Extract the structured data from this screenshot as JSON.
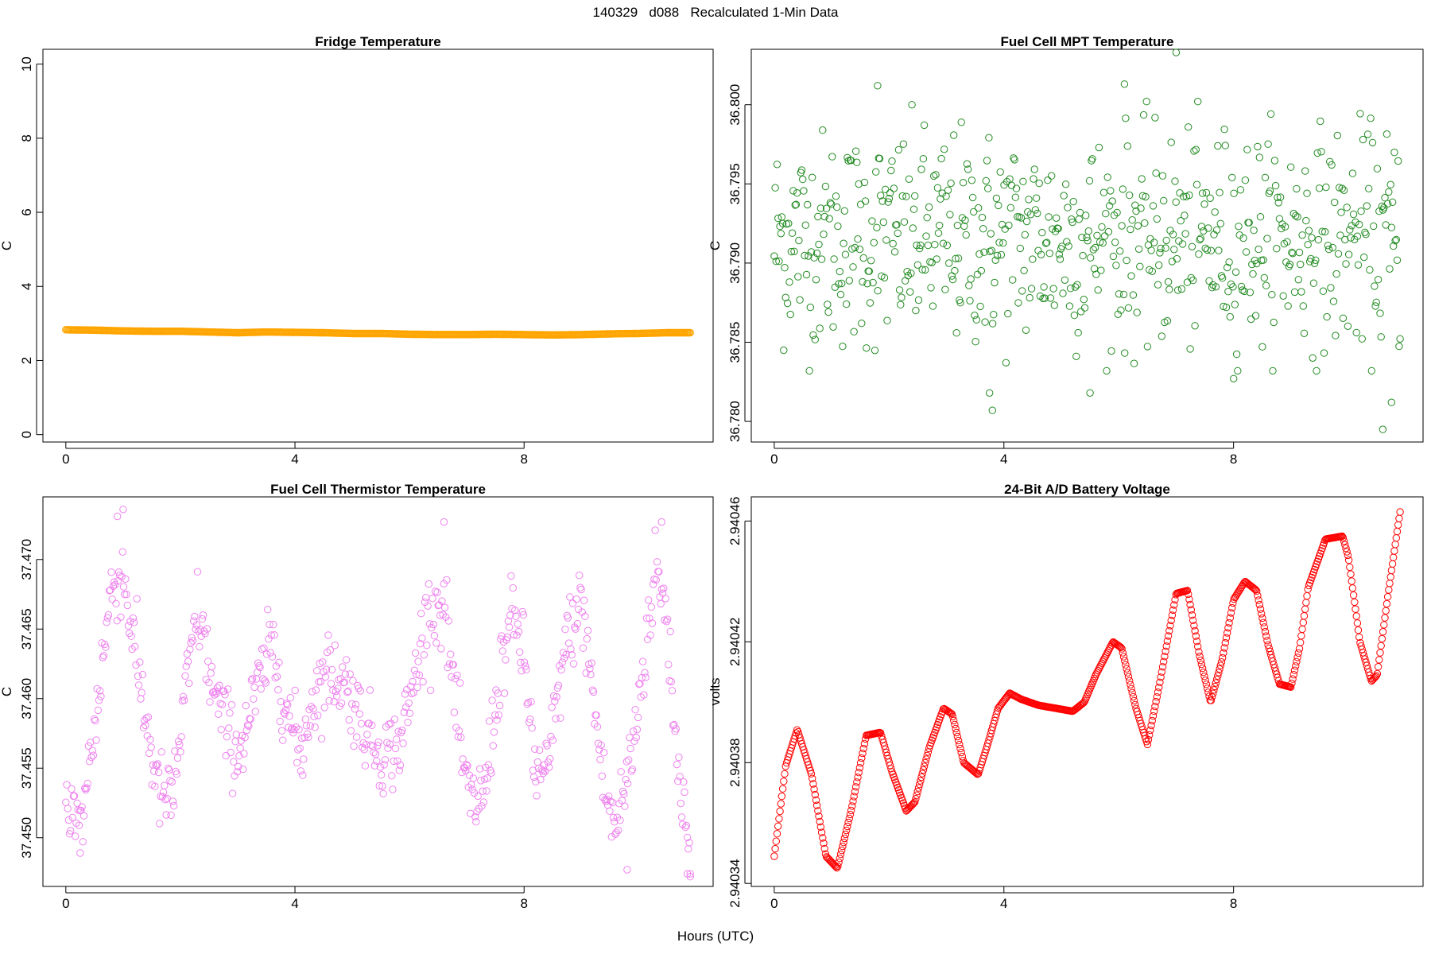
{
  "page": {
    "title": "140329   d088   Recalculated 1-Min Data",
    "xlabel": "Hours (UTC)"
  },
  "chart_data": [
    {
      "type": "scatter",
      "title": "Fridge Temperature",
      "ylabel": "C",
      "xlim": [
        -0.4,
        11.3
      ],
      "ylim": [
        -0.2,
        10.4
      ],
      "xticks": [
        0,
        4,
        8
      ],
      "yticks": [
        0,
        2,
        4,
        6,
        8,
        10
      ],
      "ytick_labels": [
        "0",
        "2",
        "4",
        "6",
        "8",
        "10"
      ],
      "color": "#FFA500",
      "series": [
        {
          "x": [
            0,
            0.5,
            1,
            1.5,
            2,
            2.5,
            3,
            3.5,
            4,
            4.5,
            5,
            5.5,
            6,
            6.5,
            7,
            7.5,
            8,
            8.5,
            9,
            9.5,
            10,
            10.5,
            10.9
          ],
          "y": [
            2.83,
            2.82,
            2.8,
            2.79,
            2.79,
            2.77,
            2.75,
            2.77,
            2.76,
            2.75,
            2.73,
            2.73,
            2.71,
            2.7,
            2.7,
            2.71,
            2.7,
            2.69,
            2.7,
            2.72,
            2.73,
            2.75,
            2.75
          ]
        }
      ]
    },
    {
      "type": "scatter",
      "title": "Fuel Cell MPT Temperature",
      "ylabel": "C",
      "xlim": [
        -0.4,
        11.3
      ],
      "ylim": [
        36.7787,
        36.8035
      ],
      "xticks": [
        0,
        4,
        8
      ],
      "yticks": [
        36.78,
        36.785,
        36.79,
        36.795,
        36.8
      ],
      "ytick_labels": [
        "36.780",
        "36.785",
        "36.790",
        "36.795",
        "36.800"
      ],
      "color": "#228B22",
      "series": [
        {
          "mean": 36.7915,
          "sd": 0.0034,
          "x_range": [
            0,
            10.9
          ],
          "n_points": 660,
          "extremes": [
            [
              7.0,
              36.8033
            ],
            [
              6.1,
              36.8013
            ],
            [
              1.8,
              36.8012
            ],
            [
              10.6,
              36.7795
            ],
            [
              3.8,
              36.7807
            ],
            [
              10.75,
              36.7812
            ],
            [
              3.75,
              36.7818
            ],
            [
              5.5,
              36.7818
            ],
            [
              8.0,
              36.7827
            ]
          ]
        }
      ]
    },
    {
      "type": "scatter",
      "title": "Fuel Cell Thermistor Temperature",
      "ylabel": "C",
      "xlim": [
        -0.4,
        11.3
      ],
      "ylim": [
        37.4465,
        37.4745
      ],
      "xticks": [
        0,
        4,
        8
      ],
      "yticks": [
        37.45,
        37.455,
        37.46,
        37.465,
        37.47
      ],
      "ytick_labels": [
        "37.450",
        "37.455",
        "37.460",
        "37.465",
        "37.470"
      ],
      "color": "#EE82EE",
      "series": [
        {
          "x_range": [
            0,
            10.9
          ],
          "n_points": 660,
          "noise_sd": 0.0014,
          "trend": {
            "x": [
              0,
              0.25,
              0.5,
              0.8,
              1.0,
              1.3,
              1.6,
              1.85,
              2.1,
              2.3,
              2.6,
              3.0,
              3.3,
              3.6,
              3.9,
              4.1,
              4.3,
              4.6,
              4.9,
              5.2,
              5.5,
              5.8,
              6.0,
              6.3,
              6.6,
              6.9,
              7.05,
              7.3,
              7.6,
              7.8,
              8.0,
              8.2,
              8.4,
              8.7,
              9.0,
              9.2,
              9.4,
              9.6,
              9.9,
              10.3,
              10.5,
              10.7,
              10.9
            ],
            "y": [
              37.453,
              37.4505,
              37.458,
              37.468,
              37.469,
              37.461,
              37.4535,
              37.4525,
              37.4605,
              37.4665,
              37.46,
              37.456,
              37.46,
              37.464,
              37.4585,
              37.456,
              37.46,
              37.462,
              37.461,
              37.458,
              37.456,
              37.4565,
              37.4595,
              37.466,
              37.467,
              37.456,
              37.4525,
              37.453,
              37.4625,
              37.466,
              37.463,
              37.4545,
              37.4545,
              37.4635,
              37.467,
              37.4605,
              37.4535,
              37.4505,
              37.4565,
              37.4695,
              37.4655,
              37.4545,
              37.4495
            ]
          },
          "extremes": [
            [
              1.0,
              37.4736
            ],
            [
              0.9,
              37.4731
            ],
            [
              6.6,
              37.4727
            ],
            [
              10.4,
              37.4727
            ],
            [
              10.9,
              37.4472
            ],
            [
              10.85,
              37.4474
            ],
            [
              9.8,
              37.4477
            ],
            [
              0.25,
              37.4489
            ]
          ]
        }
      ]
    },
    {
      "type": "scatter",
      "title": "24-Bit A/D Battery Voltage",
      "ylabel": "volts",
      "xlim": [
        -0.4,
        11.3
      ],
      "ylim": [
        2.940339,
        2.940468
      ],
      "xticks": [
        0,
        4,
        8
      ],
      "yticks": [
        2.94034,
        2.94038,
        2.94042,
        2.94046
      ],
      "ytick_labels": [
        "2.94034",
        "2.94038",
        "2.94042",
        "2.94046"
      ],
      "color": "#FF0000",
      "series": [
        {
          "x_range": [
            0,
            10.9
          ],
          "n_points": 660,
          "path": {
            "x": [
              0,
              0.2,
              0.4,
              0.65,
              0.9,
              1.1,
              1.35,
              1.6,
              1.85,
              2.05,
              2.3,
              2.45,
              2.7,
              2.95,
              3.1,
              3.3,
              3.55,
              3.7,
              3.9,
              4.1,
              4.3,
              4.6,
              4.9,
              5.2,
              5.4,
              5.6,
              5.9,
              6.05,
              6.3,
              6.5,
              6.7,
              7.0,
              7.2,
              7.4,
              7.6,
              7.8,
              8.0,
              8.2,
              8.4,
              8.6,
              8.8,
              9.0,
              9.15,
              9.3,
              9.6,
              9.9,
              10.0,
              10.2,
              10.4,
              10.5,
              10.7,
              10.9
            ],
            "y": [
              2.940349,
              2.940379,
              2.940391,
              2.940376,
              2.940349,
              2.940345,
              2.940365,
              2.940389,
              2.94039,
              2.940377,
              2.940364,
              2.940367,
              2.940385,
              2.940398,
              2.940396,
              2.94038,
              2.940376,
              2.940385,
              2.940398,
              2.940403,
              2.940401,
              2.940399,
              2.940398,
              2.940397,
              2.9404,
              2.940409,
              2.94042,
              2.940418,
              2.940398,
              2.940386,
              2.940405,
              2.940436,
              2.940437,
              2.940416,
              2.9404,
              2.940414,
              2.940434,
              2.94044,
              2.940437,
              2.940419,
              2.940406,
              2.940405,
              2.940418,
              2.940438,
              2.940454,
              2.940455,
              2.940448,
              2.94042,
              2.940407,
              2.940409,
              2.940437,
              2.940463
            ]
          }
        }
      ]
    }
  ]
}
